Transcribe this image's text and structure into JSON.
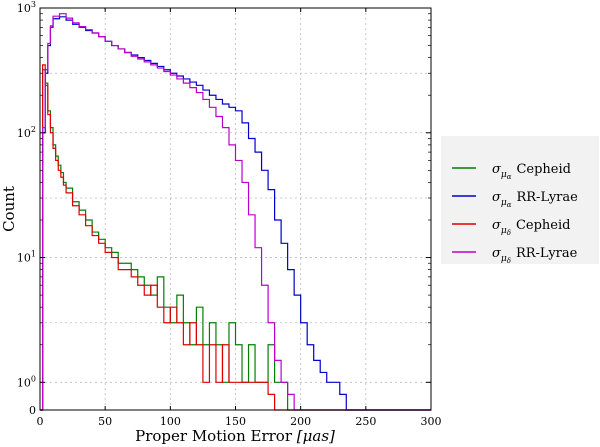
{
  "chart_data": {
    "type": "line",
    "style": "step-histogram",
    "title": "",
    "xlabel": "Proper Motion Error",
    "xlabel_unit": "[μas]",
    "ylabel": "Count",
    "xlim": [
      0,
      300
    ],
    "ylim": [
      0.6,
      1000
    ],
    "yscale": "log",
    "grid": true,
    "legend_placement": "center-right",
    "x_ticks": [
      "0",
      "50",
      "100",
      "150",
      "200",
      "250",
      "300"
    ],
    "x_tick_values": [
      0,
      50,
      100,
      150,
      200,
      250,
      300
    ],
    "y_ticks": [
      {
        "value": 1,
        "base": "10",
        "exp": "0"
      },
      {
        "value": 10,
        "base": "10",
        "exp": "1"
      },
      {
        "value": 100,
        "base": "10",
        "exp": "2"
      },
      {
        "value": 1000,
        "base": "10",
        "exp": "3"
      }
    ],
    "y_zero_label": "0",
    "series": [
      {
        "name": "σ_μα Cepheid",
        "legend_sub": "μ",
        "legend_subsub": "α",
        "legend_text": "Cepheid",
        "color": "#008000",
        "x": [
          0,
          2,
          4,
          6,
          8,
          10,
          12,
          14,
          16,
          18,
          20,
          25,
          30,
          35,
          40,
          45,
          50,
          55,
          60,
          65,
          70,
          75,
          80,
          85,
          90,
          95,
          100,
          105,
          110,
          115,
          120,
          125,
          130,
          135,
          140,
          145,
          150,
          155,
          160,
          165,
          170,
          175,
          180,
          185,
          190
        ],
        "values": [
          0,
          320,
          250,
          150,
          110,
          80,
          65,
          55,
          48,
          40,
          36,
          28,
          24,
          20,
          16,
          14,
          12,
          11,
          9,
          9,
          8,
          7,
          6,
          5,
          7,
          4,
          3,
          5,
          3,
          2,
          4,
          2,
          3,
          2,
          1,
          3,
          2,
          1,
          2,
          1,
          1,
          2,
          1,
          1,
          0
        ]
      },
      {
        "name": "σ_μα RR-Lyrae",
        "legend_sub": "μ",
        "legend_subsub": "α",
        "legend_text": "RR-Lyrae",
        "color": "#0000cc",
        "x": [
          0,
          2,
          4,
          6,
          8,
          10,
          15,
          20,
          25,
          30,
          35,
          40,
          45,
          50,
          55,
          60,
          65,
          70,
          75,
          80,
          85,
          90,
          95,
          100,
          105,
          110,
          115,
          120,
          125,
          130,
          135,
          140,
          145,
          150,
          155,
          160,
          165,
          170,
          175,
          180,
          185,
          190,
          195,
          200,
          205,
          210,
          215,
          220,
          225,
          230,
          235
        ],
        "values": [
          0,
          100,
          300,
          500,
          700,
          820,
          850,
          800,
          740,
          700,
          660,
          630,
          590,
          540,
          500,
          470,
          440,
          420,
          400,
          380,
          360,
          340,
          320,
          300,
          285,
          270,
          255,
          240,
          220,
          200,
          185,
          170,
          160,
          150,
          120,
          90,
          70,
          50,
          35,
          20,
          13,
          8,
          5,
          3,
          2,
          1.5,
          1.2,
          1,
          1,
          0.8,
          0
        ]
      },
      {
        "name": "σ_μδ Cepheid",
        "legend_sub": "μ",
        "legend_subsub": "δ",
        "legend_text": "Cepheid",
        "color": "#e00000",
        "x": [
          0,
          2,
          4,
          6,
          8,
          10,
          12,
          14,
          16,
          18,
          20,
          25,
          30,
          35,
          40,
          45,
          50,
          55,
          60,
          65,
          70,
          75,
          80,
          85,
          90,
          95,
          100,
          105,
          110,
          115,
          120,
          125,
          130,
          135,
          140,
          145,
          150,
          155,
          160,
          165,
          170,
          175,
          180
        ],
        "values": [
          0,
          350,
          240,
          140,
          100,
          75,
          60,
          50,
          44,
          38,
          33,
          26,
          22,
          18,
          15,
          13,
          11,
          10,
          8,
          8,
          7,
          6,
          5,
          6,
          4,
          3,
          4,
          3,
          2,
          3,
          2,
          1,
          2,
          1,
          2,
          1,
          1,
          1,
          1,
          1,
          1,
          0.8,
          0
        ]
      },
      {
        "name": "σ_μδ RR-Lyrae",
        "legend_sub": "μ",
        "legend_subsub": "δ",
        "legend_text": "RR-Lyrae",
        "color": "#bb00cc",
        "x": [
          0,
          2,
          4,
          6,
          8,
          10,
          15,
          20,
          25,
          30,
          35,
          40,
          45,
          50,
          55,
          60,
          65,
          70,
          75,
          80,
          85,
          90,
          95,
          100,
          105,
          110,
          115,
          120,
          125,
          130,
          135,
          140,
          145,
          150,
          155,
          160,
          165,
          170,
          175,
          180,
          185,
          190,
          195,
          200
        ],
        "values": [
          0,
          110,
          320,
          520,
          720,
          860,
          900,
          830,
          760,
          710,
          670,
          630,
          590,
          540,
          500,
          470,
          440,
          410,
          390,
          370,
          350,
          330,
          310,
          290,
          270,
          250,
          230,
          210,
          185,
          160,
          135,
          110,
          80,
          60,
          40,
          22,
          12,
          6,
          3,
          1.5,
          1,
          0.8,
          0.6,
          0
        ]
      }
    ]
  }
}
